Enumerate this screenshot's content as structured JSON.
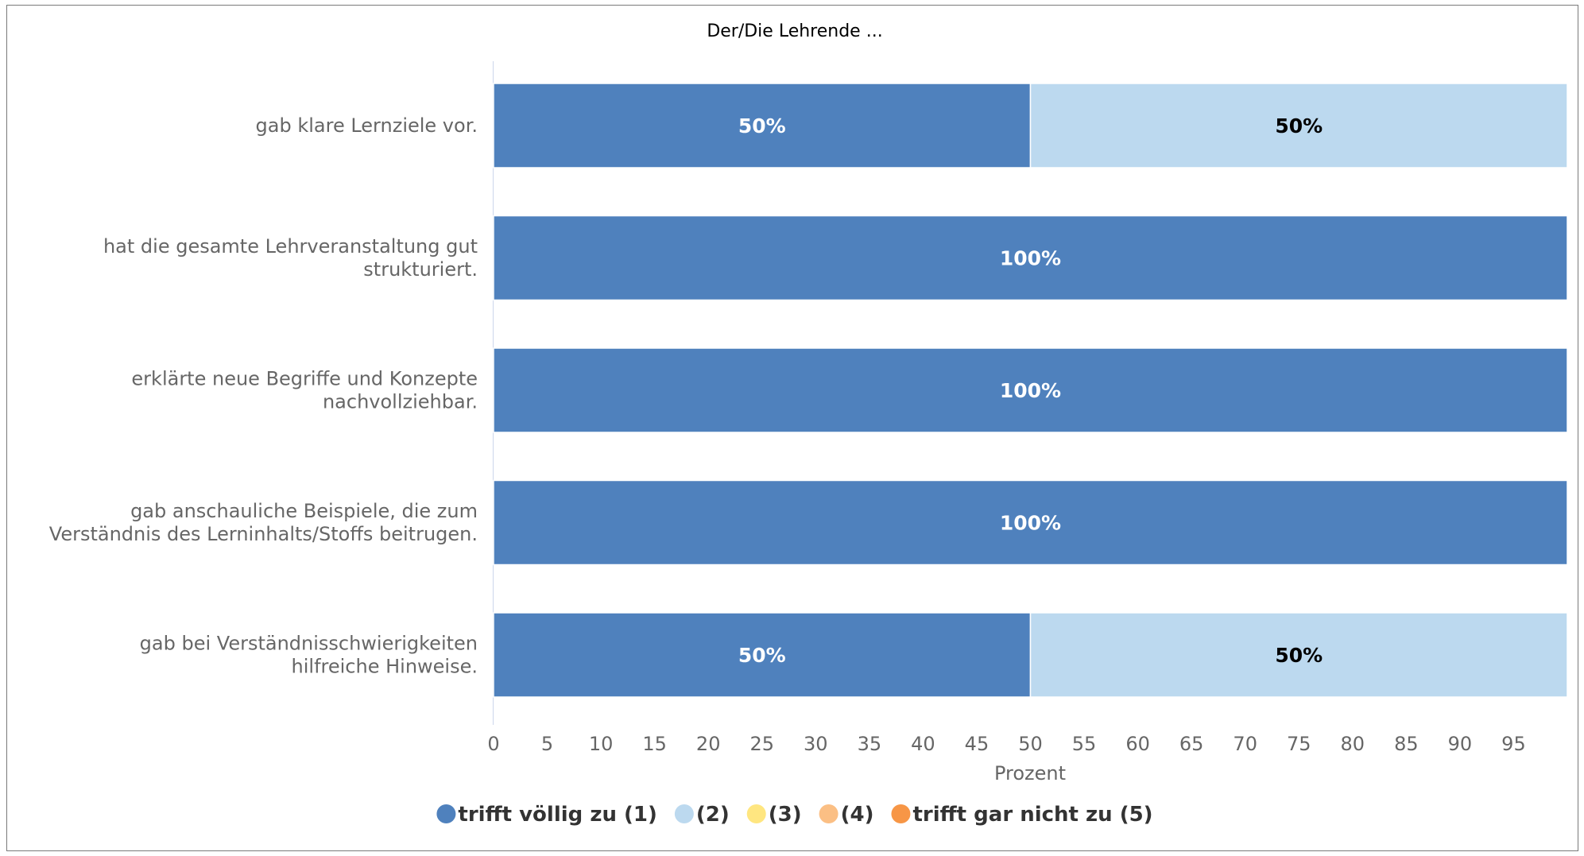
{
  "chart_data": {
    "type": "bar",
    "orientation": "horizontal",
    "stacked": true,
    "title": "Der/Die Lehrende ...",
    "xlabel": "Prozent",
    "ylabel": "",
    "xlim": [
      0,
      100
    ],
    "xticks": [
      0,
      5,
      10,
      15,
      20,
      25,
      30,
      35,
      40,
      45,
      50,
      55,
      60,
      65,
      70,
      75,
      80,
      85,
      90,
      95
    ],
    "grid": false,
    "legend_position": "bottom",
    "categories": [
      "gab klare Lernziele vor.",
      "hat die gesamte Lehrveranstaltung gut strukturiert.",
      "erklärte neue Begriffe und Konzepte nachvollziehbar.",
      "gab anschauliche Beispiele, die zum Verständnis des Lerninhalts/Stoffs beitrugen.",
      "gab bei Verständnisschwierigkeiten hilfreiche Hinweise."
    ],
    "category_lines": [
      [
        "gab klare Lernziele vor."
      ],
      [
        "hat die gesamte Lehrveranstaltung gut",
        "strukturiert."
      ],
      [
        "erklärte neue Begriffe und Konzepte",
        "nachvollziehbar."
      ],
      [
        "gab anschauliche Beispiele, die zum",
        "Verständnis des Lerninhalts/Stoffs beitrugen."
      ],
      [
        "gab bei Verständnisschwierigkeiten",
        "hilfreiche Hinweise."
      ]
    ],
    "series": [
      {
        "name": "trifft völlig zu (1)",
        "color": "#4f81bd",
        "label_color": "#ffffff",
        "values": [
          50,
          100,
          100,
          100,
          50
        ]
      },
      {
        "name": "(2)",
        "color": "#bcd9ef",
        "label_color": "#000000",
        "values": [
          50,
          0,
          0,
          0,
          50
        ]
      },
      {
        "name": "(3)",
        "color": "#ffe680",
        "label_color": "#000000",
        "values": [
          0,
          0,
          0,
          0,
          0
        ]
      },
      {
        "name": "(4)",
        "color": "#fbbf84",
        "label_color": "#000000",
        "values": [
          0,
          0,
          0,
          0,
          0
        ]
      },
      {
        "name": "trifft gar nicht zu (5)",
        "color": "#f79646",
        "label_color": "#000000",
        "values": [
          0,
          0,
          0,
          0,
          0
        ]
      }
    ],
    "value_label_suffix": "%"
  }
}
